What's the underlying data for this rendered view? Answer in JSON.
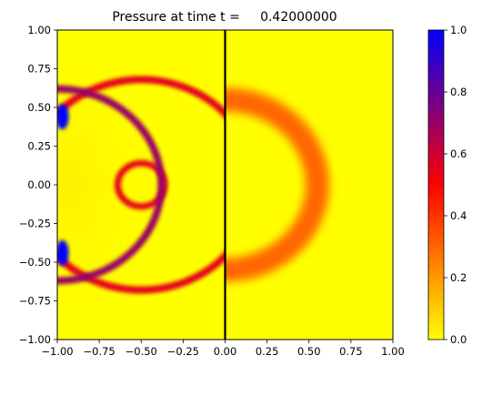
{
  "chart_data": {
    "type": "heatmap",
    "title": "Pressure at time t =     0.42000000",
    "xlim": [
      -1.0,
      1.0
    ],
    "ylim": [
      -1.0,
      1.0
    ],
    "xticks": [
      -1.0,
      -0.75,
      -0.5,
      -0.25,
      0.0,
      0.25,
      0.5,
      0.75,
      1.0
    ],
    "xtick_labels": [
      "−1.00",
      "−0.75",
      "−0.50",
      "−0.25",
      "0.00",
      "0.25",
      "0.50",
      "0.75",
      "1.00"
    ],
    "yticks": [
      1.0,
      0.75,
      0.5,
      0.25,
      0.0,
      -0.25,
      -0.5,
      -0.75,
      -1.0
    ],
    "ytick_labels": [
      "1.00",
      "0.75",
      "0.50",
      "0.25",
      "0.00",
      "−0.25",
      "−0.50",
      "−0.75",
      "−1.00"
    ],
    "colorbar": {
      "range": [
        0.0,
        1.0
      ],
      "ticks": [
        0.0,
        0.2,
        0.4,
        0.6,
        0.8,
        1.0
      ],
      "tick_labels": [
        "0.0",
        "0.2",
        "0.4",
        "0.6",
        "0.8",
        "1.0"
      ],
      "colors": [
        "#ffff00",
        "#ff8000",
        "#ff0000",
        "#800080",
        "#0000ff"
      ]
    },
    "interface_line_x": 0.0,
    "grid": false,
    "features": [
      {
        "shape": "ring",
        "center": [
          -0.5,
          0.0
        ],
        "radius": 0.14,
        "value": 0.55
      },
      {
        "shape": "ring",
        "center": [
          -0.5,
          0.0
        ],
        "radius": 0.68,
        "value": 0.55
      },
      {
        "shape": "ring",
        "center": [
          -1.0,
          0.0
        ],
        "radius": 0.62,
        "value": 0.7
      },
      {
        "shape": "ring",
        "center": [
          0.0,
          0.0
        ],
        "radius": 0.55,
        "value": 0.3
      },
      {
        "shape": "spot",
        "center": [
          -0.97,
          0.44
        ],
        "value": 1.0
      },
      {
        "shape": "spot",
        "center": [
          -0.97,
          -0.44
        ],
        "value": 1.0
      }
    ]
  }
}
